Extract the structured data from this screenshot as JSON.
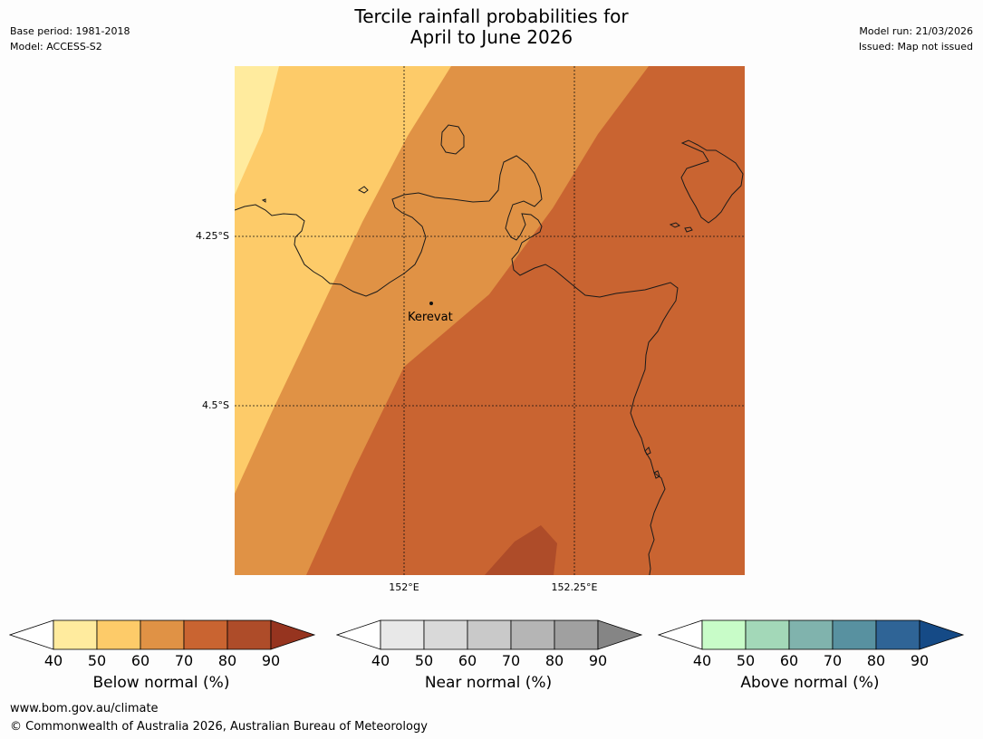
{
  "header": {
    "title_line1": "Tercile rainfall probabilities for",
    "title_line2": "April to June 2026",
    "base_period": "Base period: 1981-2018",
    "model": "Model: ACCESS-S2",
    "model_run": "Model run: 21/03/2026",
    "issued": "Issued: Map not issued"
  },
  "map": {
    "lat_labels": [
      "4.25°S",
      "4.5°S"
    ],
    "lon_labels": [
      "152°E",
      "152.25°E"
    ],
    "place": "Kerevat",
    "colors": {
      "below_40_50": "#ffeb9e",
      "below_50_60": "#fdcb69",
      "below_60_70": "#e09245",
      "below_70_80": "#c96431",
      "below_80_90": "#ae4c29"
    }
  },
  "legends": [
    {
      "name": "below",
      "title": "Below normal (%)",
      "ticks": [
        "40",
        "50",
        "60",
        "70",
        "80",
        "90"
      ],
      "colors": [
        "#ffeb9e",
        "#fdcb69",
        "#e09245",
        "#c96431",
        "#ae4c29",
        "#96341f"
      ]
    },
    {
      "name": "near",
      "title": "Near normal (%)",
      "ticks": [
        "40",
        "50",
        "60",
        "70",
        "80",
        "90"
      ],
      "colors": [
        "#e8e8e8",
        "#d9d9d9",
        "#c9c9c9",
        "#b5b5b5",
        "#a0a0a0",
        "#858585"
      ]
    },
    {
      "name": "above",
      "title": "Above normal (%)",
      "ticks": [
        "40",
        "50",
        "60",
        "70",
        "80",
        "90"
      ],
      "colors": [
        "#c8fcc8",
        "#a3d8b8",
        "#80b3ad",
        "#5891a0",
        "#2f6496",
        "#154a86"
      ]
    }
  ],
  "footer": {
    "url": "www.bom.gov.au/climate",
    "copyright": "© Commonwealth of Australia 2026, Australian Bureau of Meteorology"
  }
}
